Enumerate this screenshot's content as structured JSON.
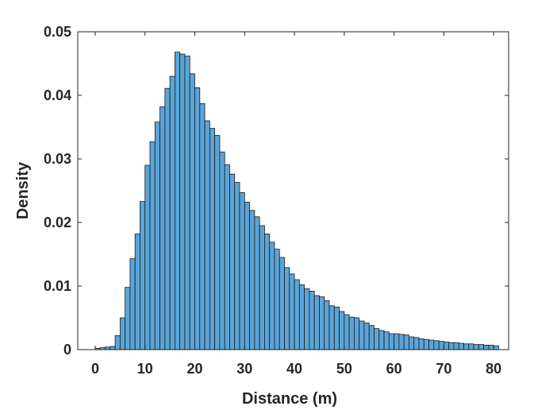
{
  "chart_data": {
    "type": "bar",
    "subtype": "histogram",
    "title": "",
    "xlabel": "Distance (m)",
    "ylabel": "Density",
    "xlim": [
      -3.5,
      83
    ],
    "ylim": [
      0,
      0.05
    ],
    "xticks": [
      0,
      10,
      20,
      30,
      40,
      50,
      60,
      70,
      80
    ],
    "xtick_labels": [
      "0",
      "10",
      "20",
      "30",
      "40",
      "50",
      "60",
      "70",
      "80"
    ],
    "yticks": [
      0,
      0.01,
      0.02,
      0.03,
      0.04,
      0.05
    ],
    "ytick_labels": [
      "0",
      "0.01",
      "0.02",
      "0.03",
      "0.04",
      "0.05"
    ],
    "grid": false,
    "box": true,
    "bar_color": "#5aa5d8",
    "edge_color": "#1a1a1a",
    "bin_edges_start": 0,
    "bin_width": 1,
    "values": [
      0.0002,
      0.0003,
      0.0004,
      0.0005,
      0.0022,
      0.005,
      0.0098,
      0.0143,
      0.0182,
      0.0233,
      0.029,
      0.0327,
      0.0358,
      0.0382,
      0.0411,
      0.043,
      0.0468,
      0.0465,
      0.0462,
      0.0434,
      0.0412,
      0.0387,
      0.036,
      0.0348,
      0.0337,
      0.0311,
      0.0291,
      0.0276,
      0.0263,
      0.0247,
      0.0232,
      0.0219,
      0.0209,
      0.0195,
      0.0182,
      0.0169,
      0.0158,
      0.0145,
      0.0129,
      0.0119,
      0.011,
      0.0102,
      0.0096,
      0.0092,
      0.0085,
      0.0083,
      0.0077,
      0.0069,
      0.0067,
      0.006,
      0.0055,
      0.0051,
      0.005,
      0.0045,
      0.0042,
      0.0038,
      0.0033,
      0.003,
      0.0028,
      0.0025,
      0.0025,
      0.0024,
      0.0023,
      0.002,
      0.0019,
      0.0017,
      0.0016,
      0.0015,
      0.0014,
      0.0013,
      0.0012,
      0.0011,
      0.0011,
      0.001,
      0.0009,
      0.0009,
      0.0008,
      0.0008,
      0.0007,
      0.0007,
      0.0006
    ]
  }
}
